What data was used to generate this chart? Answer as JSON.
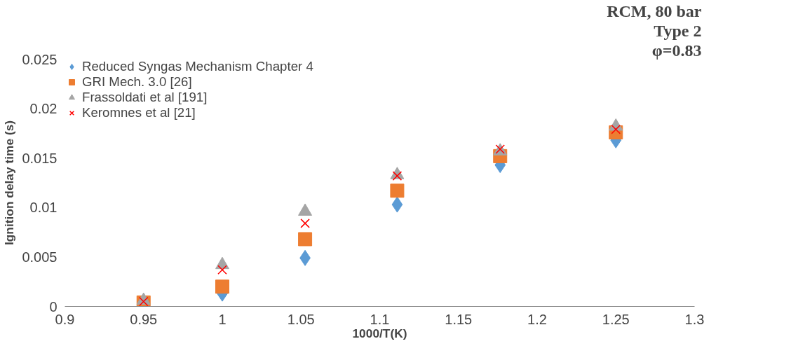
{
  "chart_data": {
    "type": "scatter",
    "xlabel": "1000/T(K)",
    "ylabel": "Ignition delay time (s)",
    "annotations": [
      "RCM, 80 bar",
      "Type 2",
      "φ=0.83"
    ],
    "x": [
      0.95,
      1.0,
      1.0526,
      1.1111,
      1.1765,
      1.25
    ],
    "xlim": [
      0.9,
      1.3
    ],
    "xticks": [
      0.9,
      0.95,
      1,
      1.05,
      1.1,
      1.15,
      1.2,
      1.25,
      1.3
    ],
    "ylim": [
      0,
      0.025
    ],
    "yticks": [
      0,
      0.005,
      0.01,
      0.015,
      0.02,
      0.025
    ],
    "grid": false,
    "legend": "top left",
    "series": [
      {
        "name": "Reduced Syngas Mechanism Chapter 4",
        "color": "#5b9bd5",
        "marker": "diamond",
        "values": [
          null,
          0.0013,
          0.0049,
          0.0103,
          0.0143,
          0.0168
        ]
      },
      {
        "name": "GRI Mech. 3.0 [26]",
        "color": "#ed7d31",
        "marker": "square",
        "values": [
          0.0004,
          0.002,
          0.0068,
          0.0117,
          0.0152,
          0.0176
        ]
      },
      {
        "name": "Frassoldati et al [191]",
        "color": "#a5a5a5",
        "marker": "triangle",
        "values": [
          0.0006,
          0.0042,
          0.0096,
          0.0133,
          0.0157,
          0.0182
        ]
      },
      {
        "name": "Keromnes et al [21]",
        "color": "#ff0000",
        "marker": "cross",
        "values": [
          0.0005,
          0.0037,
          0.0084,
          0.0132,
          0.0159,
          0.0179
        ]
      }
    ]
  }
}
